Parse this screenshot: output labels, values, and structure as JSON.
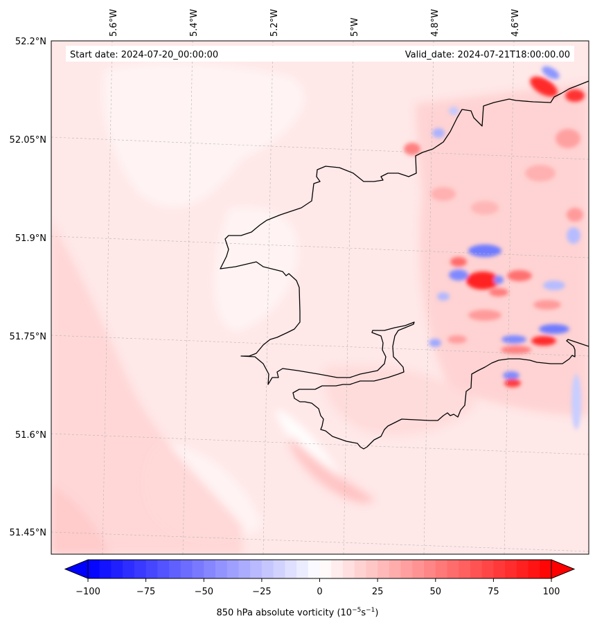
{
  "header": {
    "start_label": "Start date: 2024-07-20_00:00:00",
    "valid_label": "Valid_date: 2024-07-21T18:00:00.00"
  },
  "map": {
    "lon_labels": [
      "5.6°W",
      "5.4°W",
      "5.2°W",
      "5°W",
      "4.8°W",
      "4.6°W"
    ],
    "lat_labels": [
      "52.2°N",
      "52.05°N",
      "51.9°N",
      "51.75°N",
      "51.6°N",
      "51.45°N"
    ],
    "colors": {
      "background": "#ffe8e8",
      "pale": "#fff4f4",
      "light_red": "#ffd4d4",
      "mid_red": "#ff9a9a",
      "strong_red": "#ff2020",
      "light_blue": "#d8dcff",
      "mid_blue": "#8c96ff",
      "coastline": "#000000",
      "grid": "#b4b4b4"
    }
  },
  "colorbar": {
    "ticks": [
      "−100",
      "−75",
      "−50",
      "−25",
      "0",
      "25",
      "50",
      "75",
      "100"
    ],
    "label_text": "850 hPa absolute vorticity (10",
    "label_exp1": "−5",
    "label_mid": "s",
    "label_exp2": "−1",
    "label_end": ")",
    "min_color": "#0000ff",
    "mid_color": "#ffffff",
    "max_color": "#ff0000"
  }
}
